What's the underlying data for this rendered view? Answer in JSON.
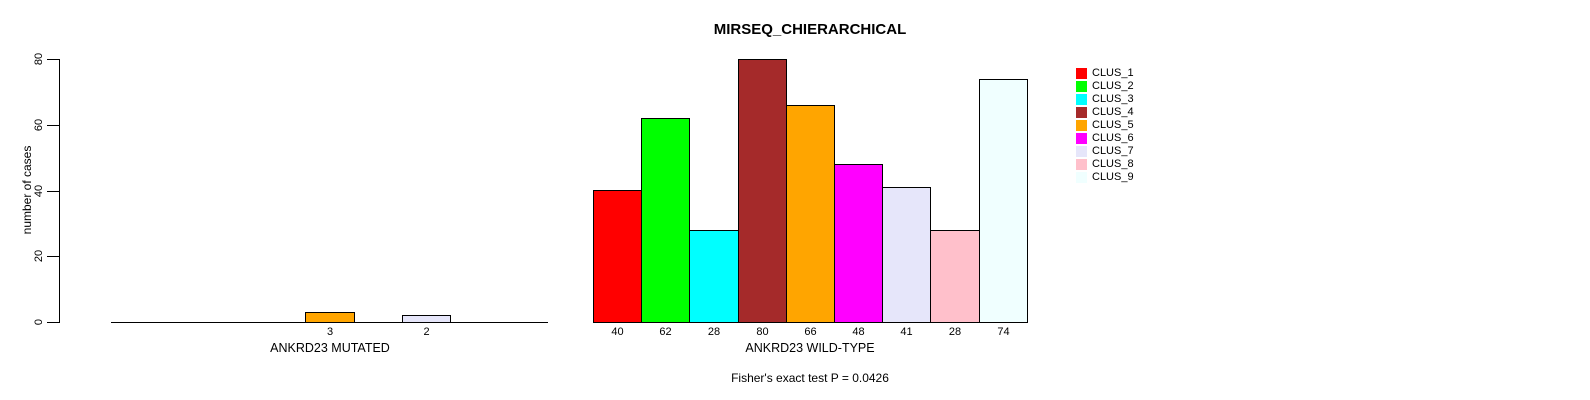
{
  "chart_data": {
    "type": "bar",
    "title": "MIRSEQ_CHIERARCHICAL",
    "ylabel": "number of cases",
    "xlabel": "",
    "ylim": [
      0,
      80
    ],
    "yticks": [
      0,
      20,
      40,
      60,
      80
    ],
    "grid": false,
    "legend_position": "right",
    "annotation": "Fisher's exact test P = 0.0426",
    "clusters": [
      {
        "name": "CLUS_1",
        "color": "#FF0000"
      },
      {
        "name": "CLUS_2",
        "color": "#00FF00"
      },
      {
        "name": "CLUS_3",
        "color": "#00FFFF"
      },
      {
        "name": "CLUS_4",
        "color": "#A52A2A"
      },
      {
        "name": "CLUS_5",
        "color": "#FFA500"
      },
      {
        "name": "CLUS_6",
        "color": "#FF00FF"
      },
      {
        "name": "CLUS_7",
        "color": "#E6E6FA"
      },
      {
        "name": "CLUS_8",
        "color": "#FFC0CB"
      },
      {
        "name": "CLUS_9",
        "color": "#F0FFFF"
      }
    ],
    "groups": [
      {
        "label": "ANKRD23 MUTATED",
        "values": [
          0,
          0,
          0,
          0,
          3,
          0,
          2,
          0,
          0
        ]
      },
      {
        "label": "ANKRD23 WILD-TYPE",
        "values": [
          40,
          62,
          28,
          80,
          66,
          48,
          41,
          28,
          74
        ]
      }
    ],
    "colors": {
      "axis": "#000000",
      "text": "#000000",
      "background": "#FFFFFF"
    }
  }
}
